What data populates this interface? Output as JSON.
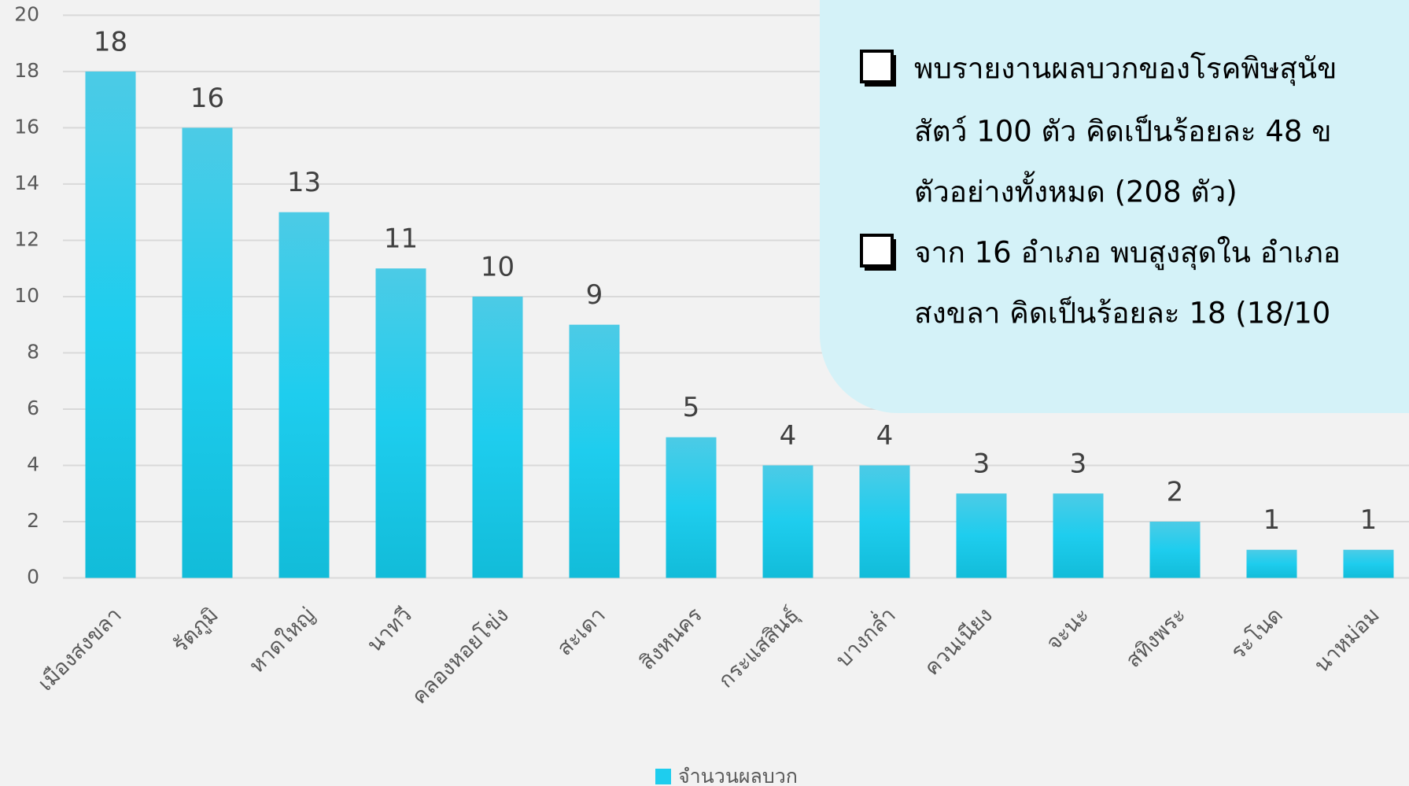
{
  "chart_data": {
    "type": "bar",
    "categories": [
      "เมืองสงขลา",
      "รัตภูมิ",
      "หาดใหญ่",
      "นาทวี",
      "คลองหอยโข่ง",
      "สะเดา",
      "สิงหนคร",
      "กระแสสินธุ์",
      "บางกล่ำ",
      "ควนเนียง",
      "จะนะ",
      "สทิงพระ",
      "ระโนด",
      "นาหม่อม"
    ],
    "series": [
      {
        "name": "จำนวนผลบวก",
        "color": "#1ecdee",
        "values": [
          18,
          16,
          13,
          11,
          10,
          9,
          5,
          4,
          4,
          3,
          3,
          2,
          1,
          1
        ]
      }
    ],
    "ylim": [
      0,
      20
    ],
    "yticks": [
      0,
      2,
      4,
      6,
      8,
      10,
      12,
      14,
      16,
      18,
      20
    ],
    "grid": true,
    "legend": "bottom",
    "annotations": [
      {
        "lines": [
          "พบรายงานผลบวกของโรคพิษสุนัข",
          "สัตว์ 100 ตัว คิดเป็นร้อยละ 48 ข",
          "ตัวอย่างทั้งหมด (208 ตัว)"
        ]
      },
      {
        "lines": [
          "จาก 16 อำเภอ พบสูงสุดใน อำเภอ",
          "สงขลา คิดเป็นร้อยละ 18 (18/10"
        ]
      }
    ]
  }
}
